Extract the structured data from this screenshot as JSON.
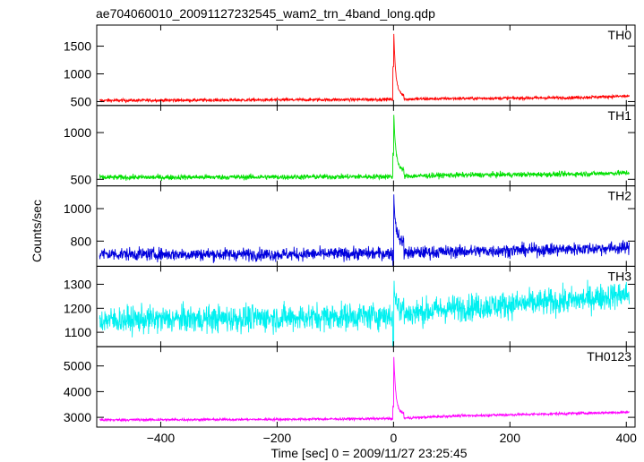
{
  "chart_data": {
    "type": "line",
    "title": "ae704060010_20091127232545_wam2_trn_4band_long.qdp",
    "xlabel": "Time [sec] 0 = 2009/11/27 23:25:45",
    "ylabel": "Counts/sec",
    "xlim": [
      -510,
      415
    ],
    "x_ticks": [
      -400,
      -200,
      0,
      200,
      400
    ],
    "x_tick_labels": [
      "−400",
      "−200",
      "0",
      "200",
      "400"
    ],
    "grid": false,
    "panels": [
      {
        "name": "TH0",
        "color": "#ff0000",
        "ylim": [
          430,
          1880
        ],
        "y_ticks": [
          500,
          1000,
          1500
        ],
        "y_tick_labels": [
          "500",
          "1000",
          "1500"
        ],
        "baseline": [
          [
            -505,
            520
          ],
          [
            -200,
            530
          ],
          [
            0,
            540
          ],
          [
            100,
            555
          ],
          [
            300,
            570
          ],
          [
            405,
            600
          ]
        ],
        "noise": 20,
        "peak": 1870,
        "decay_to": 620
      },
      {
        "name": "TH1",
        "color": "#00e000",
        "ylim": [
          430,
          1290
        ],
        "y_ticks": [
          500,
          1000
        ],
        "y_tick_labels": [
          "500",
          "1000"
        ],
        "baseline": [
          [
            -505,
            520
          ],
          [
            -200,
            525
          ],
          [
            0,
            530
          ],
          [
            100,
            545
          ],
          [
            300,
            555
          ],
          [
            405,
            570
          ]
        ],
        "noise": 20,
        "peak": 1280,
        "decay_to": 600
      },
      {
        "name": "TH2",
        "color": "#0000dd",
        "ylim": [
          645,
          1140
        ],
        "y_ticks": [
          800,
          1000
        ],
        "y_tick_labels": [
          "800",
          "1000"
        ],
        "baseline": [
          [
            -505,
            720
          ],
          [
            -200,
            718
          ],
          [
            0,
            725
          ],
          [
            100,
            735
          ],
          [
            300,
            750
          ],
          [
            405,
            760
          ]
        ],
        "noise": 28,
        "peak": 1125,
        "decay_to": 800
      },
      {
        "name": "TH3",
        "color": "#00f0f0",
        "ylim": [
          1040,
          1375
        ],
        "y_ticks": [
          1100,
          1200,
          1300
        ],
        "y_tick_labels": [
          "1100",
          "1200",
          "1300"
        ],
        "baseline": [
          [
            -505,
            1150
          ],
          [
            -200,
            1160
          ],
          [
            0,
            1170
          ],
          [
            100,
            1200
          ],
          [
            300,
            1230
          ],
          [
            405,
            1260
          ]
        ],
        "noise": 40,
        "peak": 1300,
        "decay_to": 1210
      },
      {
        "name": "TH0123",
        "color": "#ff00ff",
        "ylim": [
          2620,
          5750
        ],
        "y_ticks": [
          3000,
          4000,
          5000
        ],
        "y_tick_labels": [
          "3000",
          "4000",
          "5000"
        ],
        "baseline": [
          [
            -505,
            2900
          ],
          [
            -200,
            2920
          ],
          [
            0,
            2950
          ],
          [
            100,
            3050
          ],
          [
            300,
            3150
          ],
          [
            405,
            3200
          ]
        ],
        "noise": 35,
        "peak": 5700,
        "decay_to": 3150
      }
    ]
  }
}
